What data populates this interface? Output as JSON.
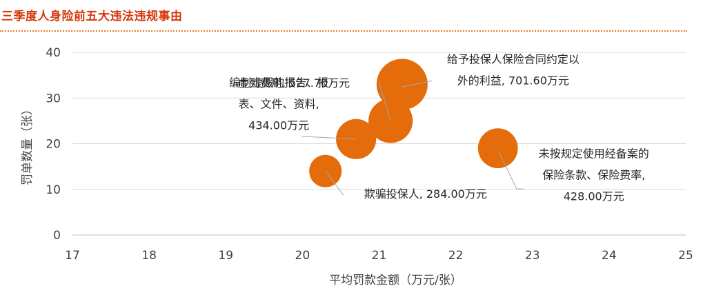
{
  "title": "三季度人身险前五大违法违规事由",
  "chart_data": {
    "type": "bubble",
    "xlabel": "平均罚款金额（万元/张）",
    "ylabel": "罚单数量（张）",
    "xlim": [
      17,
      25
    ],
    "ylim": [
      0,
      40
    ],
    "x_ticks": [
      17,
      18,
      19,
      20,
      21,
      22,
      23,
      24,
      25
    ],
    "y_ticks": [
      0,
      10,
      20,
      30,
      40
    ],
    "grid": "horizontal",
    "bubble_color": "#e46c0a",
    "points": [
      {
        "x": 20.3,
        "y": 14,
        "size": 284.0,
        "label_lines": [
          "欺骗投保人, 284.00万元"
        ]
      },
      {
        "x": 20.7,
        "y": 21,
        "size": 434.0,
        "label_lines": [
          "编制虚假的报告、报",
          "表、文件、资料,",
          "434.00万元"
        ]
      },
      {
        "x": 21.15,
        "y": 25,
        "size": 527.7,
        "label_lines": [
          "虚列费用, 527.70万元"
        ]
      },
      {
        "x": 21.3,
        "y": 33,
        "size": 701.6,
        "label_lines": [
          "给予投保人保险合同约定以",
          "外的利益, 701.60万元"
        ]
      },
      {
        "x": 22.55,
        "y": 19,
        "size": 428.0,
        "label_lines": [
          "未按规定使用经备案的",
          "保险条款、保险费率,",
          "428.00万元"
        ]
      }
    ]
  }
}
